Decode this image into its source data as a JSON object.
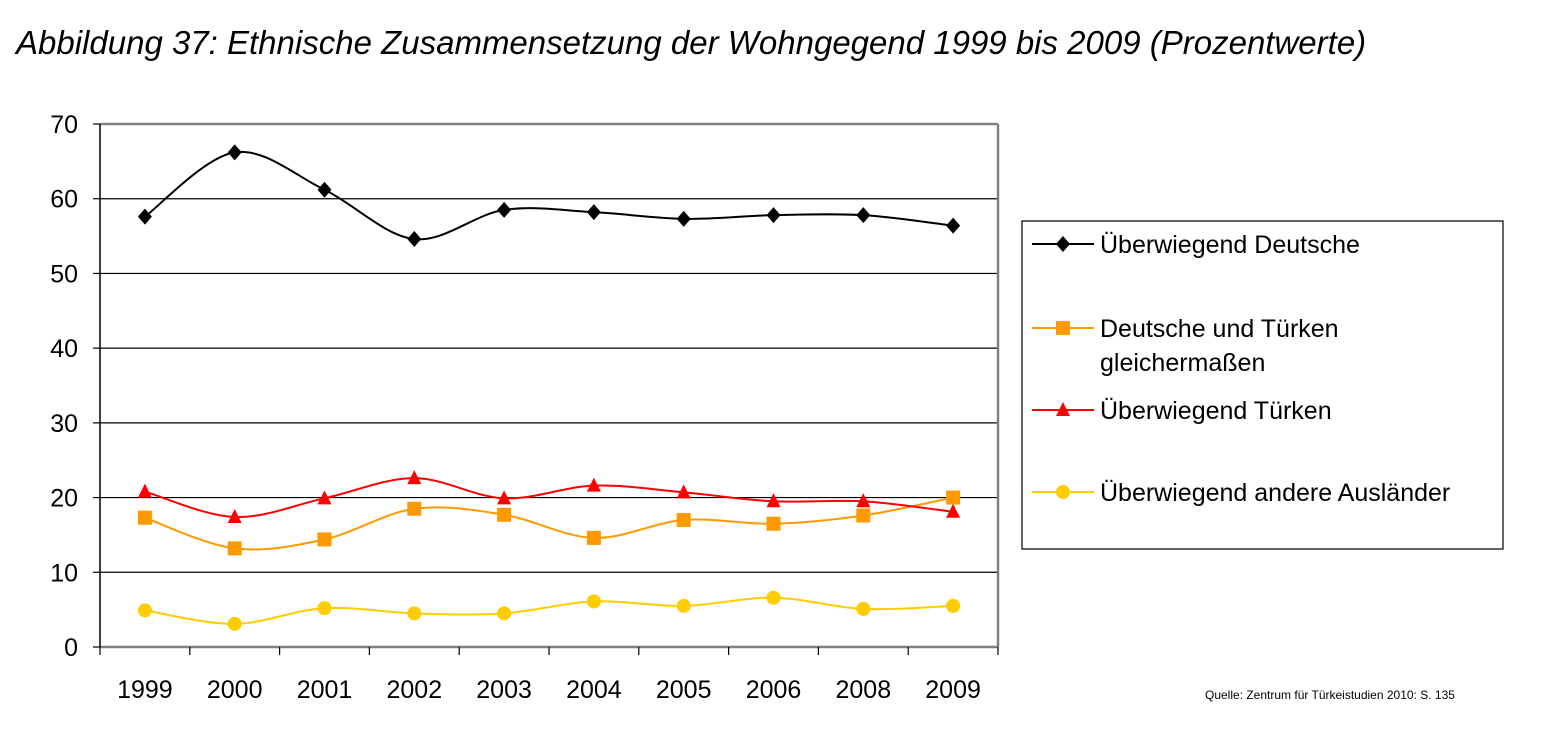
{
  "chart_data": {
    "type": "line",
    "title": "Abbildung 37: Ethnische Zusammensetzung der Wohngegend 1999 bis 2009 (Prozentwerte)",
    "xlabel": "",
    "ylabel": "",
    "categories": [
      "1999",
      "2000",
      "2001",
      "2002",
      "2003",
      "2004",
      "2005",
      "2006",
      "2008",
      "2009"
    ],
    "ylim": [
      0,
      70
    ],
    "yticks": [
      0,
      10,
      20,
      30,
      40,
      50,
      60,
      70
    ],
    "grid": true,
    "legend_position": "right",
    "series": [
      {
        "name": "Überwiegend Deutsche",
        "legend_lines": [
          "Überwiegend Deutsche"
        ],
        "color": "#000000",
        "marker": "diamond",
        "values": [
          57.6,
          66.2,
          61.2,
          54.6,
          58.5,
          58.2,
          57.3,
          57.8,
          57.8,
          56.4
        ]
      },
      {
        "name": "Deutsche und Türken gleichermaßen",
        "legend_lines": [
          "Deutsche und Türken",
          "gleichermaßen"
        ],
        "color": "#FF9900",
        "marker": "square",
        "values": [
          17.3,
          13.2,
          14.4,
          18.5,
          17.7,
          14.6,
          17.0,
          16.5,
          17.6,
          20.0
        ]
      },
      {
        "name": "Überwiegend Türken",
        "legend_lines": [
          "Überwiegend Türken"
        ],
        "color": "#FF0000",
        "marker": "triangle",
        "values": [
          20.8,
          17.4,
          19.9,
          22.6,
          19.9,
          21.6,
          20.7,
          19.5,
          19.5,
          18.1
        ]
      },
      {
        "name": "Überwiegend andere Ausländer",
        "legend_lines": [
          "Überwiegend andere Ausländer"
        ],
        "color": "#FFCC00",
        "marker": "circle",
        "values": [
          4.9,
          3.1,
          5.2,
          4.5,
          4.5,
          6.1,
          5.5,
          6.6,
          5.1,
          5.5
        ]
      }
    ],
    "source": "Quelle: Zentrum für Türkeistudien 2010: S. 135"
  }
}
